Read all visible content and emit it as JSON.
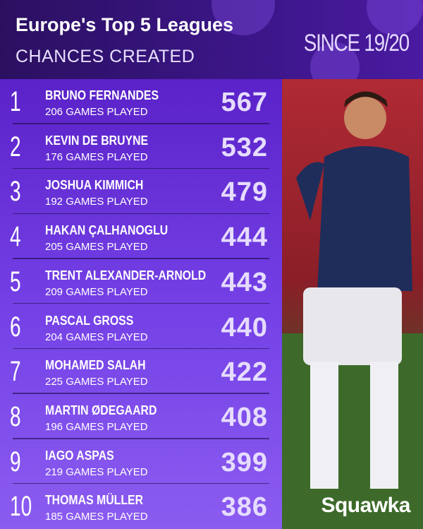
{
  "header": {
    "title": "Europe's Top 5 Leagues",
    "subtitle": "CHANCES CREATED",
    "since": "SINCE 19/20"
  },
  "rows": [
    {
      "rank": 1,
      "name": "BRUNO FERNANDES",
      "games": "206 GAMES PLAYED",
      "value": 567
    },
    {
      "rank": 2,
      "name": "KEVIN DE BRUYNE",
      "games": "176 GAMES PLAYED",
      "value": 532
    },
    {
      "rank": 3,
      "name": "JOSHUA KIMMICH",
      "games": "192 GAMES PLAYED",
      "value": 479
    },
    {
      "rank": 4,
      "name": "HAKAN ÇALHANOGLU",
      "games": "205 GAMES PLAYED",
      "value": 444
    },
    {
      "rank": 5,
      "name": "TRENT ALEXANDER-ARNOLD",
      "games": "209 GAMES PLAYED",
      "value": 443
    },
    {
      "rank": 6,
      "name": "PASCAL GROSS",
      "games": "204 GAMES PLAYED",
      "value": 440
    },
    {
      "rank": 7,
      "name": "MOHAMED SALAH",
      "games": "225 GAMES PLAYED",
      "value": 422
    },
    {
      "rank": 8,
      "name": "MARTIN ØDEGAARD",
      "games": "196 GAMES PLAYED",
      "value": 408
    },
    {
      "rank": 9,
      "name": "IAGO ASPAS",
      "games": "219 GAMES PLAYED",
      "value": 399
    },
    {
      "rank": 10,
      "name": "THOMAS MÜLLER",
      "games": "185 GAMES PLAYED",
      "value": 386
    }
  ],
  "brand": "Squawka"
}
